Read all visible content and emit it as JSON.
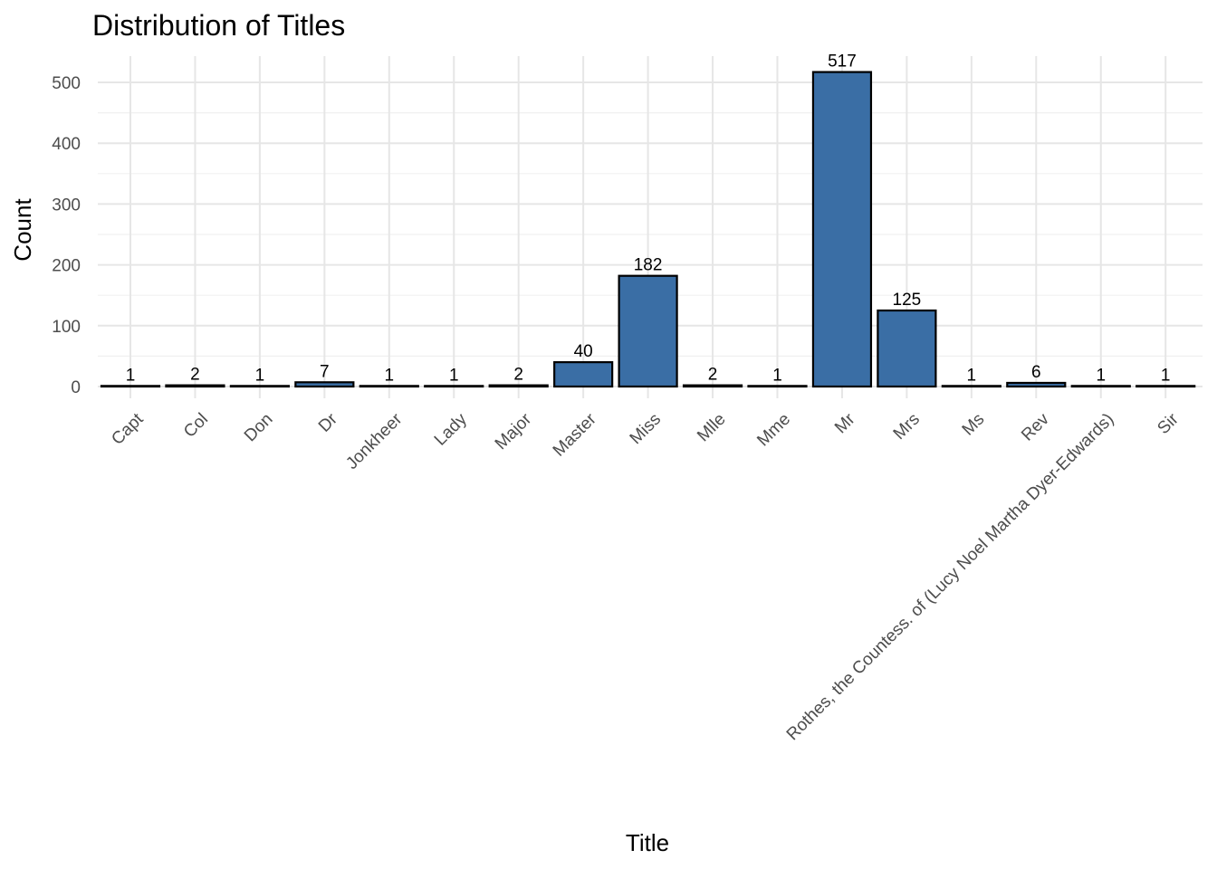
{
  "chart_data": {
    "type": "bar",
    "title": "Distribution of Titles",
    "xlabel": "Title",
    "ylabel": "Count",
    "categories": [
      "Capt",
      "Col",
      "Don",
      "Dr",
      "Jonkheer",
      "Lady",
      "Major",
      "Master",
      "Miss",
      "Mlle",
      "Mme",
      "Mr",
      "Mrs",
      "Ms",
      "Rev",
      "Rothes, the Countess. of (Lucy Noel Martha Dyer-Edwards)",
      "Sir"
    ],
    "values": [
      1,
      2,
      1,
      7,
      1,
      1,
      2,
      40,
      182,
      2,
      1,
      517,
      125,
      1,
      6,
      1,
      1
    ],
    "data_labels": [
      "1",
      "2",
      "1",
      "7",
      "1",
      "1",
      "2",
      "40",
      "182",
      "2",
      "1",
      "517",
      "125",
      "1",
      "6",
      "1",
      "1"
    ],
    "ylim": [
      0,
      540
    ],
    "yticks": [
      0,
      100,
      200,
      300,
      400,
      500
    ],
    "ytick_labels": [
      "0",
      "100",
      "200",
      "300",
      "400",
      "500"
    ],
    "grid": true,
    "legend": "none",
    "bar_color": "#3a6ea5",
    "bar_outline": "#000000"
  }
}
